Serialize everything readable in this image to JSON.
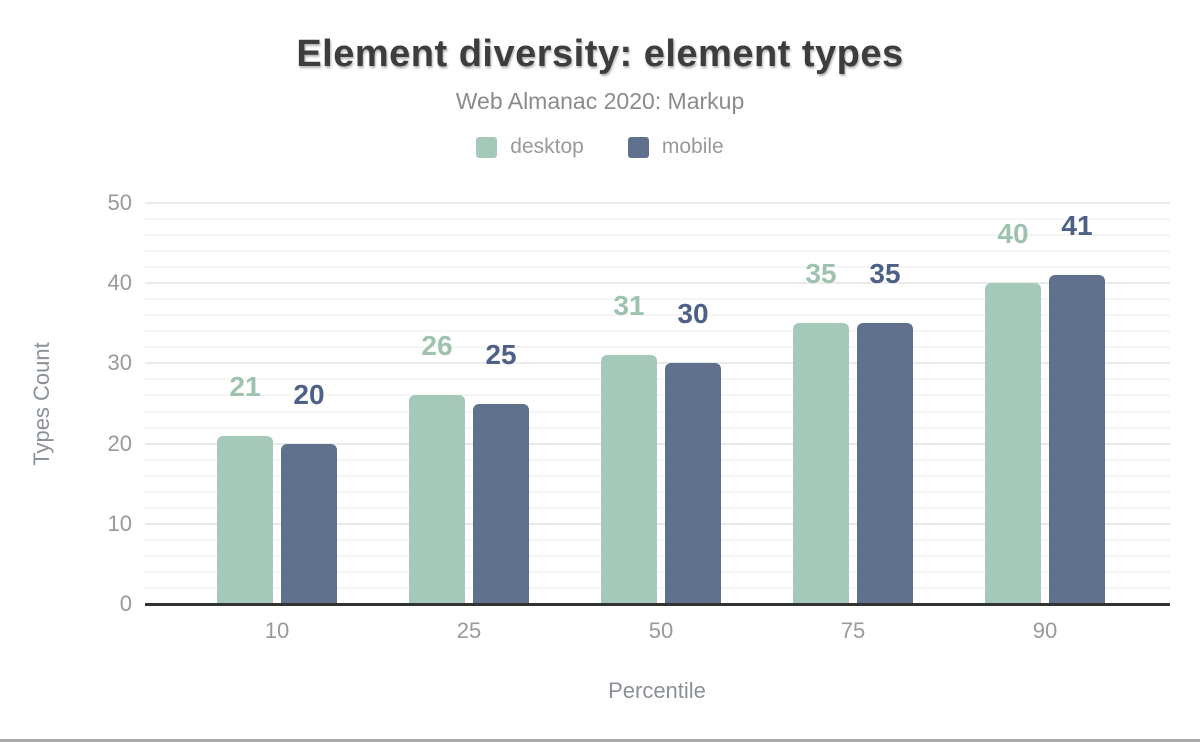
{
  "chart_data": {
    "type": "bar",
    "title": "Element diversity: element types",
    "subtitle": "Web Almanac 2020: Markup",
    "xlabel": "Percentile",
    "ylabel": "Types Count",
    "categories": [
      "10",
      "25",
      "50",
      "75",
      "90"
    ],
    "series": [
      {
        "name": "desktop",
        "color": "#a5c9b8",
        "label_color": "#9dc3ae",
        "values": [
          21,
          26,
          31,
          35,
          40
        ]
      },
      {
        "name": "mobile",
        "color": "#5f718c",
        "label_color": "#4d6186",
        "values": [
          20,
          25,
          30,
          35,
          41
        ]
      }
    ],
    "ylim": [
      0,
      50
    ],
    "yticks": [
      0,
      10,
      20,
      30,
      40,
      50
    ],
    "grid": "minor gridlines every 2 units, major every 10 units",
    "legend_position": "top",
    "colors": {
      "title": "#3d3d3d",
      "subtitle": "#8b8b8b",
      "tick_label": "#999999",
      "axis_title": "#8a9096",
      "axis_line": "#333333",
      "grid_minor": "#f5f5f5",
      "grid_major": "#e9e9e9",
      "page_border": "#a9a9a9"
    }
  }
}
